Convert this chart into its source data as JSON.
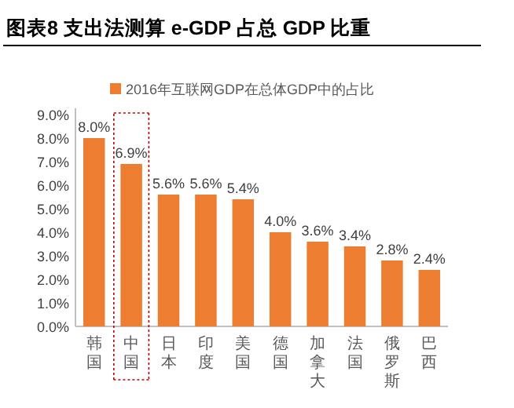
{
  "chart_data": {
    "type": "bar",
    "title": "图表8 支出法测算 e-GDP 占总 GDP 比重",
    "categories": [
      "韩国",
      "中国",
      "日本",
      "印度",
      "美国",
      "德国",
      "加拿大",
      "法国",
      "俄罗斯",
      "巴西"
    ],
    "series": [
      {
        "name": "2016年互联网GDP在总体GDP中的占比",
        "color": "#ed7d31",
        "values": [
          8.0,
          6.9,
          5.6,
          5.6,
          5.4,
          4.0,
          3.6,
          3.4,
          2.8,
          2.4
        ],
        "value_labels": [
          "8.0%",
          "6.9%",
          "5.6%",
          "5.6%",
          "5.4%",
          "4.0%",
          "3.6%",
          "3.4%",
          "2.8%",
          "2.4%"
        ]
      }
    ],
    "ylim": [
      0,
      9
    ],
    "yticks": [
      {
        "value": 0,
        "label": "0.0%"
      },
      {
        "value": 1,
        "label": "1.0%"
      },
      {
        "value": 2,
        "label": "2.0%"
      },
      {
        "value": 3,
        "label": "3.0%"
      },
      {
        "value": 4,
        "label": "4.0%"
      },
      {
        "value": 5,
        "label": "5.0%"
      },
      {
        "value": 6,
        "label": "6.0%"
      },
      {
        "value": 7,
        "label": "7.0%"
      },
      {
        "value": 8,
        "label": "8.0%"
      },
      {
        "value": 9,
        "label": "9.0%"
      }
    ],
    "legend": "top",
    "grid": false
  }
}
